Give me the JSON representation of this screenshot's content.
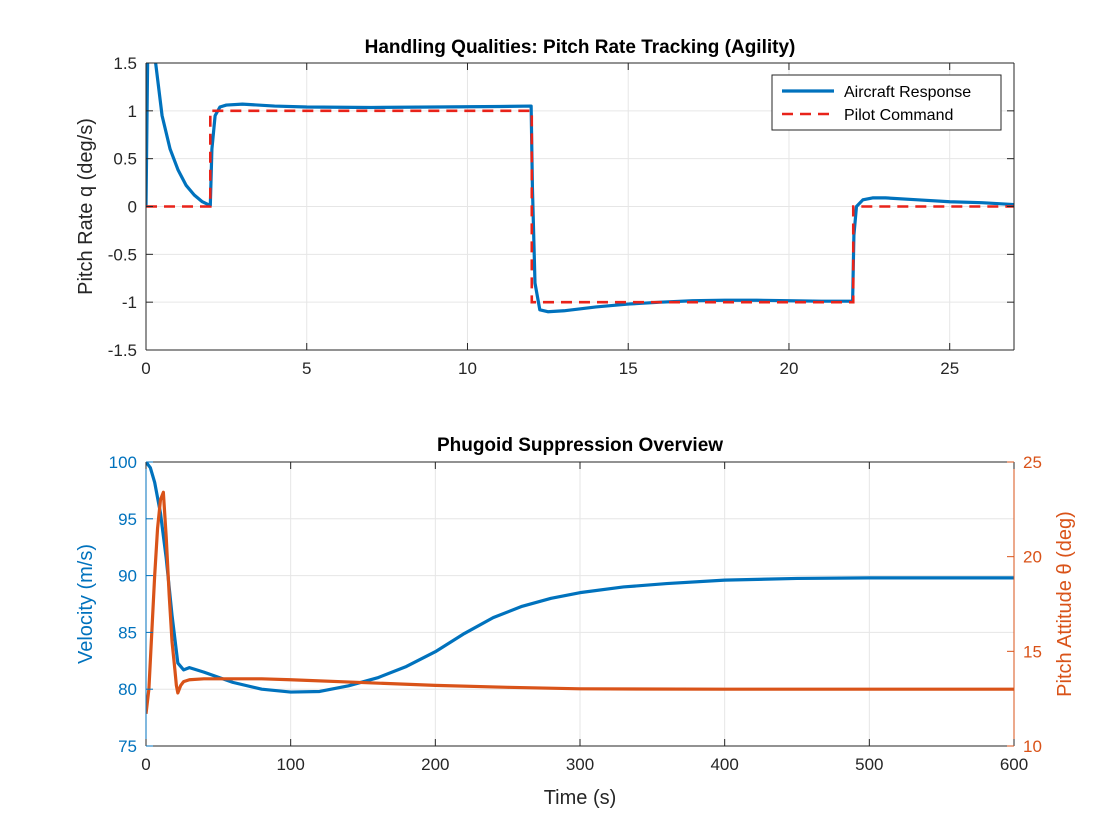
{
  "colors": {
    "response": "#0072BD",
    "command": "#E8231A",
    "velocity": "#0072BD",
    "theta": "#D95319",
    "grid": "#e6e6e6",
    "axis": "#262626"
  },
  "chart_data": [
    {
      "type": "line",
      "title": "Handling Qualities: Pitch Rate Tracking (Agility)",
      "xlabel": "",
      "ylabel": "Pitch Rate q (deg/s)",
      "xlim": [
        0,
        27
      ],
      "ylim": [
        -1.5,
        1.5
      ],
      "xticks": [
        "0",
        "5",
        "10",
        "15",
        "20",
        "25"
      ],
      "xtick_values": [
        0,
        5,
        10,
        15,
        20,
        25
      ],
      "yticks": [
        "-1.5",
        "-1",
        "-0.5",
        "0",
        "0.5",
        "1",
        "1.5"
      ],
      "ytick_values": [
        -1.5,
        -1,
        -0.5,
        0,
        0.5,
        1,
        1.5
      ],
      "grid": true,
      "legend": {
        "location": "top-right",
        "entries": [
          "Aircraft Response",
          "Pilot Command"
        ]
      },
      "series": [
        {
          "name": "Aircraft Response",
          "style": "solid",
          "x": [
            0,
            0.05,
            0.1,
            0.3,
            0.5,
            0.75,
            1.0,
            1.25,
            1.5,
            1.75,
            2.0,
            2.05,
            2.15,
            2.3,
            2.5,
            3.0,
            4.0,
            5.0,
            7.0,
            9.0,
            11.0,
            11.98,
            12.02,
            12.1,
            12.25,
            12.5,
            13.0,
            14.0,
            15.0,
            16.0,
            17.0,
            18.0,
            19.0,
            20.0,
            21.0,
            21.98,
            22.02,
            22.1,
            22.3,
            22.6,
            23.0,
            24.0,
            25.0,
            26.0,
            27.0
          ],
          "y": [
            0,
            1.5,
            1.7,
            1.5,
            0.95,
            0.6,
            0.38,
            0.22,
            0.12,
            0.05,
            0.01,
            0.6,
            0.95,
            1.04,
            1.06,
            1.07,
            1.05,
            1.04,
            1.035,
            1.04,
            1.045,
            1.05,
            0.2,
            -0.8,
            -1.08,
            -1.1,
            -1.09,
            -1.05,
            -1.02,
            -1.0,
            -0.985,
            -0.98,
            -0.98,
            -0.985,
            -0.99,
            -0.99,
            -0.3,
            0.0,
            0.07,
            0.09,
            0.09,
            0.07,
            0.05,
            0.04,
            0.02
          ]
        },
        {
          "name": "Pilot Command",
          "style": "dashed",
          "x": [
            0,
            2,
            2,
            12,
            12,
            22,
            22,
            27
          ],
          "y": [
            0,
            0,
            1,
            1,
            -1,
            -1,
            0,
            0
          ]
        }
      ]
    },
    {
      "type": "line",
      "title": "Phugoid Suppression Overview",
      "xlabel": "Time (s)",
      "ylabel": "Velocity (m/s)",
      "y2label": "Pitch Attitude θ (deg)",
      "xlim": [
        0,
        600
      ],
      "ylim": [
        75,
        100
      ],
      "y2lim": [
        10,
        25
      ],
      "xticks": [
        "0",
        "100",
        "200",
        "300",
        "400",
        "500",
        "600"
      ],
      "xtick_values": [
        0,
        100,
        200,
        300,
        400,
        500,
        600
      ],
      "yticks": [
        "75",
        "80",
        "85",
        "90",
        "95",
        "100"
      ],
      "ytick_values": [
        75,
        80,
        85,
        90,
        95,
        100
      ],
      "y2ticks": [
        "10",
        "15",
        "20",
        "25"
      ],
      "y2tick_values": [
        10,
        15,
        20,
        25
      ],
      "grid": true,
      "series": [
        {
          "axis": "left",
          "x": [
            0,
            3,
            6,
            10,
            14,
            18,
            22,
            26,
            30,
            40,
            60,
            80,
            100,
            120,
            140,
            160,
            180,
            200,
            220,
            240,
            260,
            280,
            300,
            330,
            360,
            400,
            450,
            500,
            600
          ],
          "y": [
            100,
            99.5,
            98.2,
            95.5,
            91.5,
            86.5,
            82.3,
            81.7,
            81.9,
            81.5,
            80.6,
            80.0,
            79.75,
            79.8,
            80.3,
            81.0,
            82.0,
            83.3,
            84.9,
            86.3,
            87.3,
            88.0,
            88.5,
            89.0,
            89.3,
            89.6,
            89.75,
            89.8,
            89.8
          ]
        },
        {
          "axis": "right",
          "x": [
            0,
            2,
            4,
            6,
            8,
            10,
            12,
            14,
            16,
            18,
            20,
            21,
            22,
            23,
            24,
            26,
            30,
            40,
            60,
            80,
            100,
            150,
            200,
            250,
            300,
            400,
            600
          ],
          "y": [
            11.7,
            13.0,
            16.0,
            19.0,
            21.5,
            23.0,
            23.4,
            21.0,
            18.0,
            15.5,
            14.0,
            13.2,
            12.8,
            13.0,
            13.2,
            13.4,
            13.5,
            13.55,
            13.55,
            13.55,
            13.5,
            13.35,
            13.2,
            13.1,
            13.02,
            13.0,
            13.0
          ]
        }
      ]
    }
  ]
}
